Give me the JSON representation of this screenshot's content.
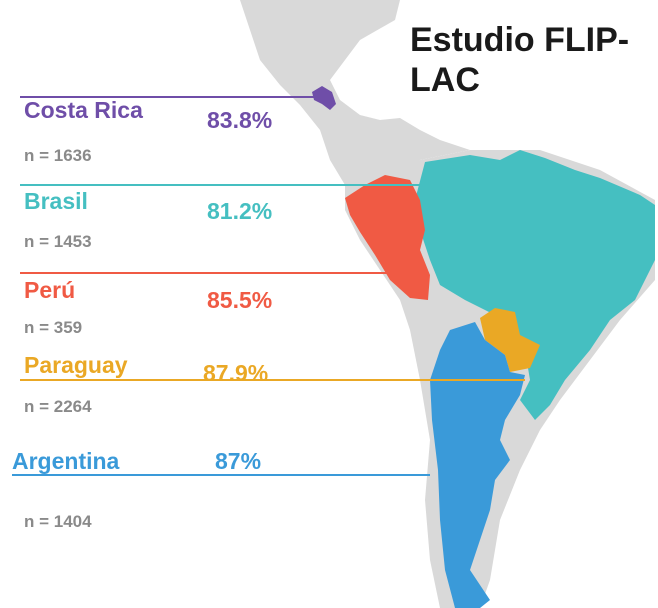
{
  "title": "Estudio FLIP-LAC",
  "countries": [
    {
      "name": "Costa Rica",
      "percent": "83.8%",
      "n": "n = 1636"
    },
    {
      "name": "Brasil",
      "percent": "81.2%",
      "n": "n = 1453"
    },
    {
      "name": "Perú",
      "percent": "85.5%",
      "n": "n = 359"
    },
    {
      "name": "Paraguay",
      "percent": "87.9%",
      "n": "n = 2264"
    },
    {
      "name": "Argentina",
      "percent": "87%",
      "n": "n = 1404"
    }
  ]
}
